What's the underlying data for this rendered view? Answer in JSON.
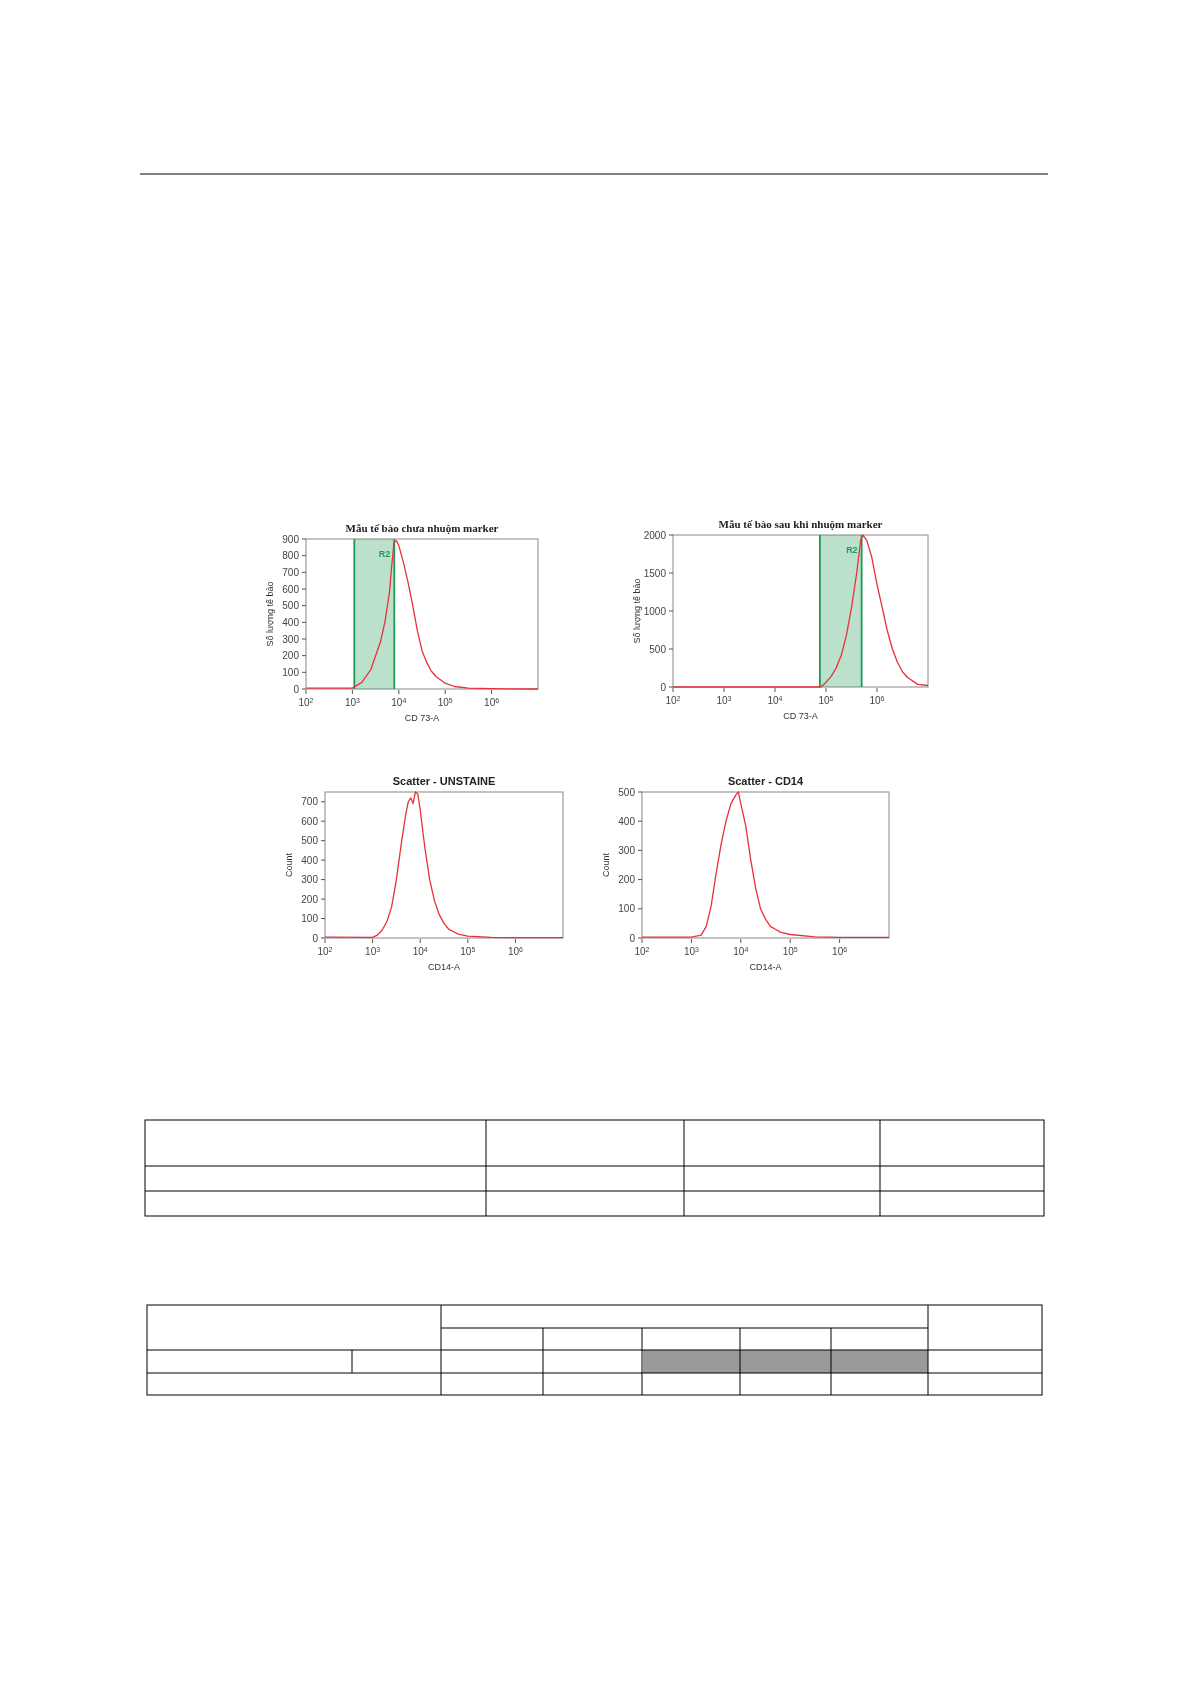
{
  "chart_data": [
    {
      "type": "line",
      "title": "Mẫu tế bào chưa nhuộm marker",
      "xlabel": "CD 73-A",
      "ylabel": "Số lượng tế bào",
      "log": "x",
      "grid": false,
      "xlim": [
        100,
        10000000
      ],
      "ylim": [
        0,
        900
      ],
      "xticks": [
        {
          "value": 100,
          "label": "10$^{2}$"
        },
        {
          "value": 1000,
          "label": "10$^{3}$"
        },
        {
          "value": 10000,
          "label": "10$^{4}$"
        },
        {
          "value": 100000,
          "label": "10$^{5}$"
        },
        {
          "value": 1000000,
          "label": "10$^{6}$"
        }
      ],
      "yticks": [
        0,
        100,
        200,
        300,
        400,
        500,
        600,
        700,
        800,
        900
      ],
      "bands": [
        {
          "axis": "x",
          "from": 1100,
          "to": 8000,
          "label": "R2",
          "color": "#1f9a55"
        }
      ],
      "ref_lines": [
        {
          "axis": "x",
          "value": 1100,
          "color": "#1f9a55"
        },
        {
          "axis": "x",
          "value": 8000,
          "color": "#1f9a55"
        }
      ],
      "x": [
        100,
        1000,
        1600,
        2500,
        4000,
        5000,
        6300,
        7100,
        7900,
        8900,
        10000,
        12600,
        15800,
        20000,
        25100,
        31600,
        39800,
        50100,
        63100,
        100000,
        158000,
        316000,
        1000000,
        10000000
      ],
      "series": [
        {
          "color": "#e8303a",
          "values": [
            5,
            5,
            40,
            117,
            280,
            400,
            580,
            750,
            880,
            890,
            860,
            760,
            640,
            500,
            350,
            230,
            160,
            108,
            75,
            35,
            15,
            5,
            2,
            0
          ]
        }
      ]
    },
    {
      "type": "line",
      "title": "Mẫu tế bào sau khi nhuộm marker",
      "xlabel": "CD 73-A",
      "ylabel": "Số lượng tế bào",
      "log": "x",
      "grid": false,
      "xlim": [
        100,
        10000000
      ],
      "ylim": [
        0,
        2000
      ],
      "xticks": [
        {
          "value": 100,
          "label": "10$^{2}$"
        },
        {
          "value": 1000,
          "label": "10$^{3}$"
        },
        {
          "value": 10000,
          "label": "10$^{4}$"
        },
        {
          "value": 100000,
          "label": "10$^{5}$"
        },
        {
          "value": 1000000,
          "label": "10$^{6}$"
        }
      ],
      "yticks": [
        0,
        500,
        1000,
        1500,
        2000
      ],
      "bands": [
        {
          "axis": "x",
          "from": 76000,
          "to": 500000,
          "label": "R2",
          "color": "#1f9a55"
        }
      ],
      "ref_lines": [
        {
          "axis": "x",
          "value": 76000,
          "color": "#1f9a55"
        },
        {
          "axis": "x",
          "value": 500000,
          "color": "#1f9a55"
        }
      ],
      "x": [
        100,
        10000,
        63100,
        79400,
        100000,
        126000,
        158000,
        200000,
        251000,
        316000,
        398000,
        479000,
        525000,
        631000,
        794000,
        1000000,
        1260000,
        1580000,
        2000000,
        2510000,
        3160000,
        3980000,
        6310000,
        10000000
      ],
      "series": [
        {
          "color": "#e8303a",
          "values": [
            0,
            0,
            0,
            0,
            60,
            140,
            250,
            420,
            680,
            1040,
            1490,
            1930,
            2000,
            1930,
            1700,
            1350,
            1050,
            750,
            500,
            325,
            200,
            125,
            35,
            20
          ]
        }
      ]
    },
    {
      "type": "line",
      "title": "Scatter - UNSTAINE",
      "xlabel": "CD14-A",
      "ylabel": "Count",
      "log": "x",
      "grid": false,
      "xlim": [
        100,
        10000000
      ],
      "ylim": [
        0,
        750
      ],
      "xticks": [
        {
          "value": 100,
          "label": "10$^{2}$"
        },
        {
          "value": 1000,
          "label": "10$^{3}$"
        },
        {
          "value": 10000,
          "label": "10$^{4}$"
        },
        {
          "value": 100000,
          "label": "10$^{5}$"
        },
        {
          "value": 1000000,
          "label": "10$^{6}$"
        }
      ],
      "yticks": [
        0,
        100,
        200,
        300,
        400,
        500,
        600,
        700
      ],
      "x": [
        100,
        1000,
        1260,
        1580,
        2000,
        2510,
        3160,
        3980,
        5010,
        5620,
        6310,
        7080,
        7940,
        8910,
        10000,
        11200,
        12600,
        15800,
        20000,
        25100,
        31600,
        39800,
        63100,
        100000,
        316000,
        1000000,
        10000000
      ],
      "series": [
        {
          "color": "#e8303a",
          "values": [
            5,
            3,
            15,
            40,
            85,
            160,
            300,
            480,
            640,
            700,
            720,
            690,
            750,
            740,
            660,
            560,
            460,
            300,
            190,
            120,
            75,
            45,
            20,
            10,
            3,
            2,
            2
          ]
        }
      ]
    },
    {
      "type": "line",
      "title": "Scatter - CD14",
      "xlabel": "CD14-A",
      "ylabel": "Count",
      "log": "x",
      "grid": false,
      "xlim": [
        100,
        10000000
      ],
      "ylim": [
        0,
        500
      ],
      "xticks": [
        {
          "value": 100,
          "label": "10$^{2}$"
        },
        {
          "value": 1000,
          "label": "10$^{3}$"
        },
        {
          "value": 10000,
          "label": "10$^{4}$"
        },
        {
          "value": 100000,
          "label": "10$^{5}$"
        },
        {
          "value": 1000000,
          "label": "10$^{6}$"
        }
      ],
      "yticks": [
        0,
        100,
        200,
        300,
        400,
        500
      ],
      "x": [
        100,
        1000,
        1580,
        2000,
        2510,
        3160,
        3980,
        5010,
        6310,
        7940,
        8910,
        10000,
        12600,
        15800,
        20000,
        25100,
        31600,
        39800,
        50100,
        63100,
        100000,
        316000,
        1000000,
        10000000
      ],
      "series": [
        {
          "color": "#e8303a",
          "values": [
            3,
            3,
            10,
            40,
            110,
            220,
            320,
            400,
            460,
            490,
            500,
            460,
            384,
            270,
            170,
            100,
            65,
            40,
            30,
            20,
            12,
            4,
            2,
            2
          ]
        }
      ]
    }
  ]
}
